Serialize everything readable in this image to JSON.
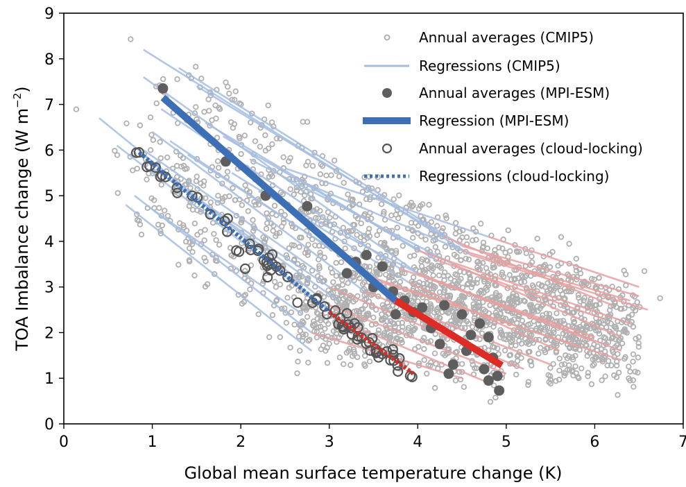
{
  "chart_data": {
    "type": "scatter",
    "xlabel": "Global mean surface temperature change (K)",
    "ylabel_main": "TOA Imbalance change (",
    "ylabel_unit": "W m",
    "ylabel_sup": "−2",
    "ylabel_close": ")",
    "xlim": [
      0,
      7
    ],
    "ylim": [
      0,
      9
    ],
    "xticks": [
      "0",
      "1",
      "2",
      "3",
      "4",
      "5",
      "6",
      "7"
    ],
    "yticks": [
      "0",
      "1",
      "2",
      "3",
      "4",
      "5",
      "6",
      "7",
      "8",
      "9"
    ],
    "grid": false,
    "legend_position": "top-right",
    "legend": [
      {
        "label": "Annual averages (CMIP5)",
        "marker": "small-open-circle"
      },
      {
        "label": "Regressions (CMIP5)",
        "marker": "thin-line"
      },
      {
        "label": "Annual averages (MPI-ESM)",
        "marker": "filled-circle"
      },
      {
        "label": "Regression (MPI-ESM)",
        "marker": "thick-line"
      },
      {
        "label": "Annual averages (cloud-locking)",
        "marker": "open-circle"
      },
      {
        "label": "Regressions (cloud-locking)",
        "marker": "dotted-line"
      }
    ],
    "colors": {
      "cmip5_points": "#b0b0b0",
      "cmip5_early": "#a4bde0",
      "cmip5_late": "#e8a0a0",
      "mpi_points": "#5e5e5e",
      "mpi_early": "#3c6fb6",
      "mpi_late": "#dd2b25",
      "cloud_points": "#555555"
    },
    "mpi_esm_points": [
      [
        1.12,
        7.35
      ],
      [
        1.83,
        5.75
      ],
      [
        2.28,
        5.0
      ],
      [
        2.75,
        4.77
      ],
      [
        3.3,
        3.55
      ],
      [
        3.42,
        3.7
      ],
      [
        3.6,
        3.45
      ],
      [
        3.2,
        3.3
      ],
      [
        3.5,
        3.0
      ],
      [
        3.72,
        2.9
      ],
      [
        3.85,
        2.7
      ],
      [
        4.05,
        2.55
      ],
      [
        3.95,
        2.45
      ],
      [
        4.3,
        2.6
      ],
      [
        4.5,
        2.4
      ],
      [
        4.7,
        2.2
      ],
      [
        3.75,
        2.4
      ],
      [
        4.15,
        2.1
      ],
      [
        4.6,
        1.95
      ],
      [
        4.8,
        1.9
      ],
      [
        4.25,
        1.75
      ],
      [
        4.55,
        1.6
      ],
      [
        4.85,
        1.45
      ],
      [
        4.4,
        1.3
      ],
      [
        4.75,
        1.2
      ],
      [
        4.9,
        1.05
      ],
      [
        4.35,
        1.1
      ],
      [
        4.8,
        0.95
      ],
      [
        4.92,
        0.73
      ]
    ],
    "mpi_esm_regression": {
      "early": [
        [
          1.12,
          7.15
        ],
        [
          3.75,
          2.7
        ]
      ],
      "late": [
        [
          3.75,
          2.7
        ],
        [
          4.95,
          1.28
        ]
      ]
    },
    "cloud_locking_regression": {
      "early": [
        [
          0.85,
          5.95
        ],
        [
          3.0,
          2.45
        ]
      ],
      "late": [
        [
          3.0,
          2.45
        ],
        [
          3.95,
          1.1
        ]
      ]
    },
    "cmip5_regressions": {
      "early": [
        [
          [
            0.9,
            8.2
          ],
          [
            4.6,
            3.7
          ]
        ],
        [
          [
            0.6,
            6.1
          ],
          [
            3.2,
            2.2
          ]
        ],
        [
          [
            0.4,
            6.7
          ],
          [
            3.0,
            2.6
          ]
        ],
        [
          [
            0.9,
            7.6
          ],
          [
            4.0,
            3.3
          ]
        ],
        [
          [
            1.3,
            7.8
          ],
          [
            4.5,
            3.9
          ]
        ],
        [
          [
            0.8,
            5.0
          ],
          [
            2.8,
            2.0
          ]
        ],
        [
          [
            0.7,
            4.8
          ],
          [
            2.8,
            1.6
          ]
        ],
        [
          [
            1.0,
            6.4
          ],
          [
            3.4,
            2.9
          ]
        ],
        [
          [
            1.1,
            6.9
          ],
          [
            3.8,
            3.4
          ]
        ],
        [
          [
            1.5,
            7.4
          ],
          [
            4.3,
            4.1
          ]
        ],
        [
          [
            1.2,
            6.2
          ],
          [
            3.5,
            3.2
          ]
        ],
        [
          [
            1.4,
            5.9
          ],
          [
            3.6,
            3.1
          ]
        ],
        [
          [
            1.0,
            5.6
          ],
          [
            3.0,
            3.0
          ]
        ],
        [
          [
            0.9,
            6.0
          ],
          [
            2.9,
            3.3
          ]
        ],
        [
          [
            1.6,
            6.6
          ],
          [
            4.0,
            3.8
          ]
        ],
        [
          [
            1.8,
            6.3
          ],
          [
            4.2,
            3.6
          ]
        ],
        [
          [
            2.1,
            5.8
          ],
          [
            4.4,
            3.5
          ]
        ],
        [
          [
            1.3,
            5.2
          ],
          [
            3.1,
            2.7
          ]
        ],
        [
          [
            1.9,
            5.5
          ],
          [
            3.9,
            3.1
          ]
        ],
        [
          [
            2.5,
            5.6
          ],
          [
            4.8,
            4.1
          ]
        ],
        [
          [
            2.2,
            5.1
          ],
          [
            4.1,
            3.2
          ]
        ],
        [
          [
            2.7,
            5.3
          ],
          [
            4.5,
            3.8
          ]
        ],
        [
          [
            1.0,
            4.7
          ],
          [
            2.7,
            2.4
          ]
        ]
      ],
      "late": [
        [
          [
            4.6,
            3.7
          ],
          [
            6.6,
            2.5
          ]
        ],
        [
          [
            3.2,
            2.2
          ],
          [
            4.8,
            0.9
          ]
        ],
        [
          [
            3.0,
            2.6
          ],
          [
            5.0,
            1.1
          ]
        ],
        [
          [
            4.0,
            3.3
          ],
          [
            6.3,
            1.6
          ]
        ],
        [
          [
            4.5,
            3.9
          ],
          [
            6.5,
            2.8
          ]
        ],
        [
          [
            2.8,
            2.0
          ],
          [
            4.5,
            1.0
          ]
        ],
        [
          [
            3.4,
            2.9
          ],
          [
            5.5,
            1.3
          ]
        ],
        [
          [
            3.8,
            3.4
          ],
          [
            6.0,
            1.9
          ]
        ],
        [
          [
            4.3,
            4.1
          ],
          [
            6.2,
            2.6
          ]
        ],
        [
          [
            3.5,
            3.2
          ],
          [
            5.8,
            1.7
          ]
        ],
        [
          [
            3.6,
            3.1
          ],
          [
            6.3,
            1.4
          ]
        ],
        [
          [
            3.0,
            3.0
          ],
          [
            5.2,
            1.2
          ]
        ],
        [
          [
            4.0,
            3.8
          ],
          [
            6.4,
            2.2
          ]
        ],
        [
          [
            4.2,
            3.6
          ],
          [
            6.1,
            2.3
          ]
        ],
        [
          [
            4.4,
            3.5
          ],
          [
            6.3,
            1.9
          ]
        ],
        [
          [
            3.9,
            3.1
          ],
          [
            5.6,
            1.6
          ]
        ],
        [
          [
            4.8,
            4.1
          ],
          [
            6.5,
            3.0
          ]
        ],
        [
          [
            4.1,
            3.2
          ],
          [
            6.0,
            1.8
          ]
        ],
        [
          [
            4.5,
            3.8
          ],
          [
            6.4,
            2.7
          ]
        ]
      ]
    }
  }
}
